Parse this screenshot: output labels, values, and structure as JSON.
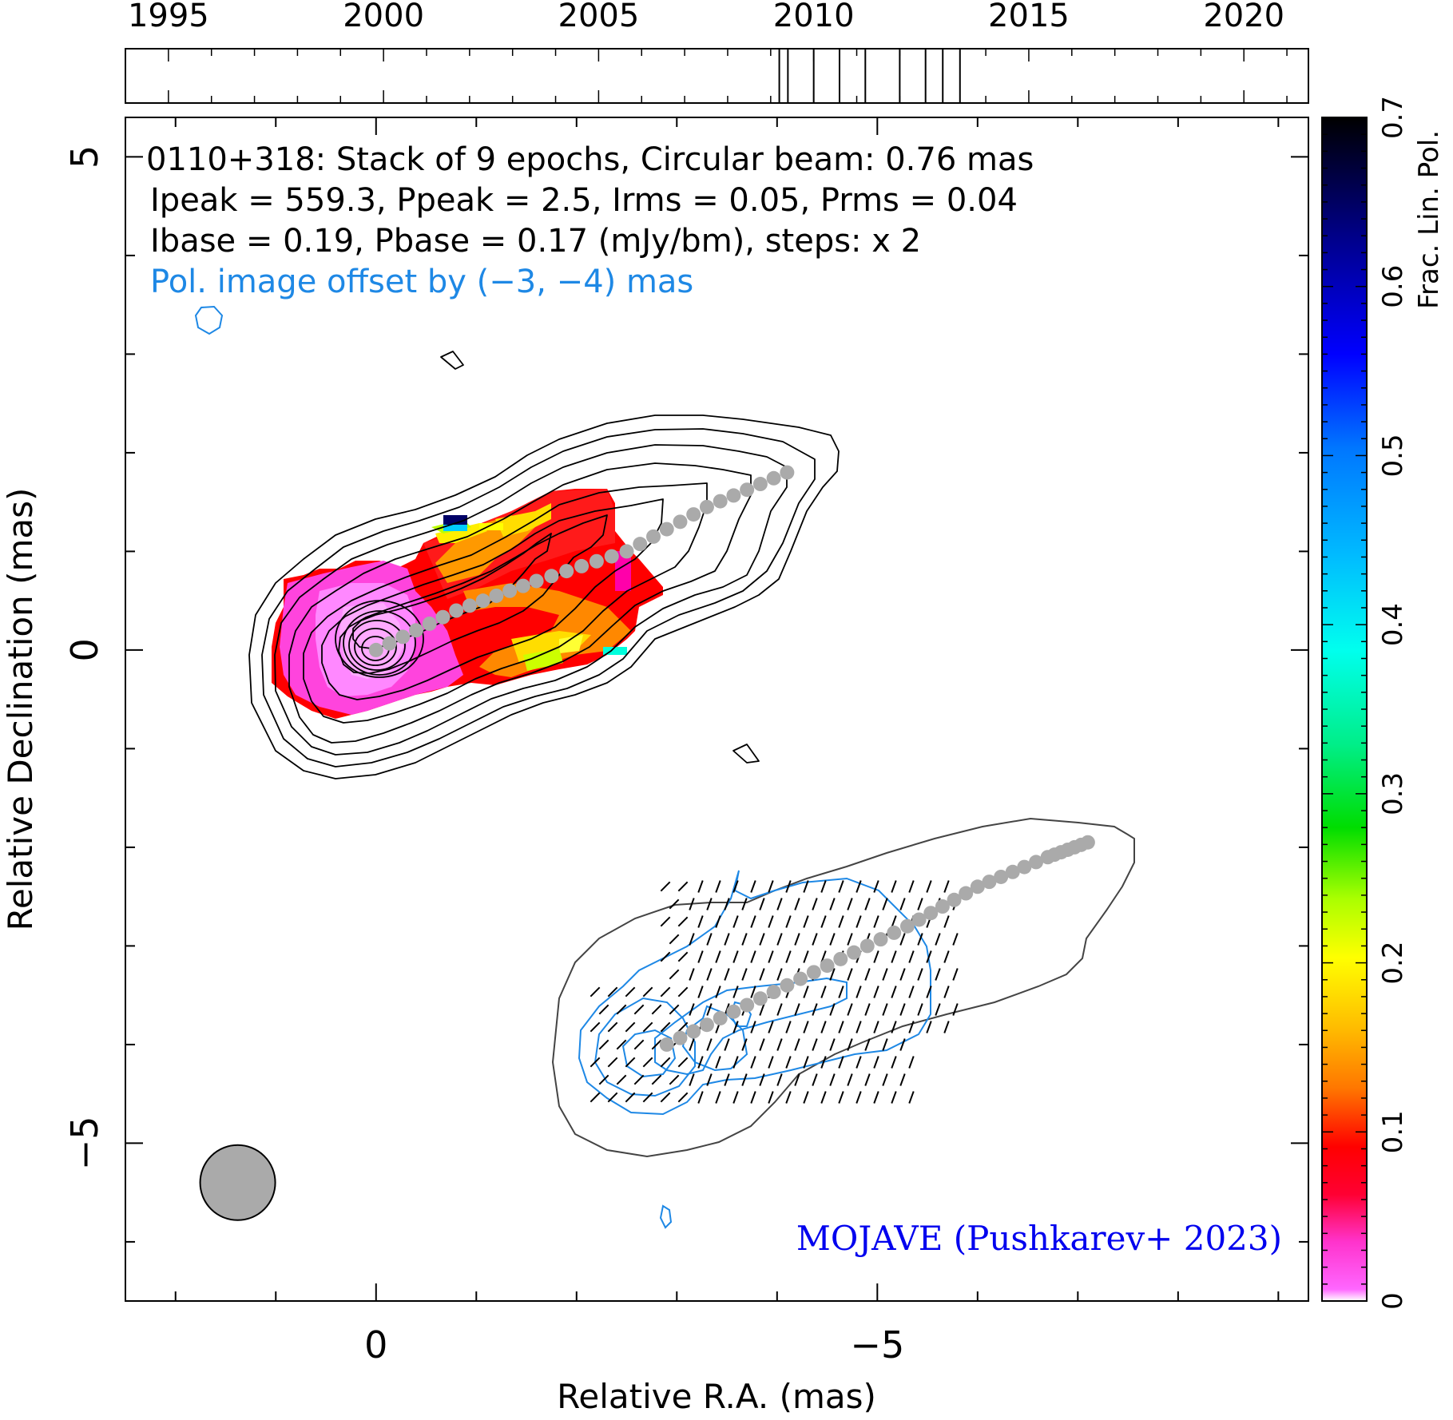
{
  "chart_data": {
    "type": "contour-map",
    "source": "0110+318",
    "annotation_lines": [
      "0110+318: Stack of 9 epochs, Circular beam: 0.76 mas",
      "Ipeak = 559.3, Ppeak = 2.5, Irms = 0.05, Prms = 0.04",
      "Ibase = 0.19, Pbase = 0.17 (mJy/bm), steps: x 2"
    ],
    "offset_note": "Pol. image offset by (−3, −4) mas",
    "credit": "MOJAVE (Pushkarev+ 2023)",
    "xlabel": "Relative R.A. (mas)",
    "ylabel": "Relative Declination (mas)",
    "colorbar_label": "Frac. Lin. Pol.",
    "xlim": [
      2.5,
      -9.3
    ],
    "ylim": [
      -6.6,
      5.4
    ],
    "x_ticks": [
      {
        "v": 0,
        "label": "0"
      },
      {
        "v": -5,
        "label": "−5"
      }
    ],
    "y_ticks": [
      {
        "v": 5,
        "label": "5"
      },
      {
        "v": 0,
        "label": "0"
      },
      {
        "v": -5,
        "label": "−5"
      }
    ],
    "colorbar_ticks": [
      "0",
      "0.1",
      "0.2",
      "0.3",
      "0.4",
      "0.5",
      "0.6",
      "0.7"
    ],
    "colorbar_range": [
      0,
      0.7
    ],
    "timeline": {
      "range": [
        1994,
        2021.5
      ],
      "year_labels": [
        "1995",
        "2000",
        "2005",
        "2010",
        "2015",
        "2020"
      ],
      "epochs": [
        2009.2,
        2009.4,
        2010.0,
        2010.6,
        2011.2,
        2012.0,
        2012.6,
        2013.0,
        2013.4
      ]
    },
    "beam": {
      "ra": 1.38,
      "dec": -5.4,
      "diameter_mas": 0.76
    },
    "core_position": [
      0,
      0
    ],
    "ridgeline_total_intensity": [
      [
        0,
        0
      ],
      [
        -0.8,
        0.4
      ],
      [
        -1.6,
        0.7
      ],
      [
        -2.5,
        1.0
      ],
      [
        -3.3,
        1.45
      ],
      [
        -4.1,
        1.8
      ]
    ],
    "ridgeline_polarization": [
      [
        -2.9,
        -4.0
      ],
      [
        -3.7,
        -3.6
      ],
      [
        -4.5,
        -3.2
      ],
      [
        -5.3,
        -2.8
      ],
      [
        -6.0,
        -2.4
      ],
      [
        -6.7,
        -2.1
      ],
      [
        -7.1,
        -1.95
      ]
    ],
    "grid": false
  },
  "colors": {
    "total_intensity_contours": "#000000",
    "polarization_contours": "#1e88e5",
    "ridgeline": "#aaaaaa",
    "credit_text": "#0000ee",
    "offset_text": "#1e88e5",
    "beam_fill": "#aaaaaa"
  }
}
